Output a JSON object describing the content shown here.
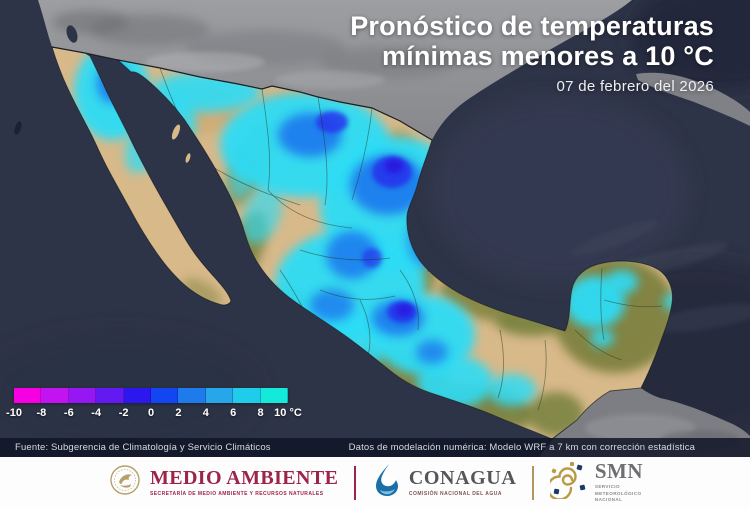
{
  "header": {
    "title_line1": "Pronóstico de temperaturas",
    "title_line2": "mínimas menores a 10 °C",
    "date": "07 de febrero del 2026"
  },
  "legend": {
    "ticks": [
      "-10",
      "-8",
      "-6",
      "-4",
      "-2",
      "0",
      "2",
      "4",
      "6",
      "8",
      "10 °C"
    ],
    "segment_colors": [
      "#f600e3",
      "#c214f1",
      "#9518f4",
      "#6319f2",
      "#2d17ef",
      "#1146f2",
      "#1f7aec",
      "#27a7e9",
      "#1fcdeb",
      "#14ead9"
    ],
    "min_c": -10,
    "max_c": 10,
    "step_c": 2
  },
  "source_bar": {
    "left": "Fuente: Subgerencia de Climatología y Servicio Climáticos",
    "right": "Datos de modelación numérica: Modelo WRF a 7 km con corrección estadística"
  },
  "footer": {
    "medio_ambiente": {
      "name": "MEDIO AMBIENTE",
      "subtitle": "SECRETARÍA DE MEDIO AMBIENTE Y RECURSOS NATURALES",
      "color": "#9d2449"
    },
    "conagua": {
      "name": "CONAGUA",
      "subtitle": "COMISIÓN NACIONAL DEL AGUA",
      "color": "#55565a"
    },
    "smn": {
      "name": "SMN",
      "subtitle_lines": [
        "SERVICIO",
        "METEOROLÓGICO",
        "NACIONAL"
      ],
      "color": "#6d6e71"
    }
  }
}
